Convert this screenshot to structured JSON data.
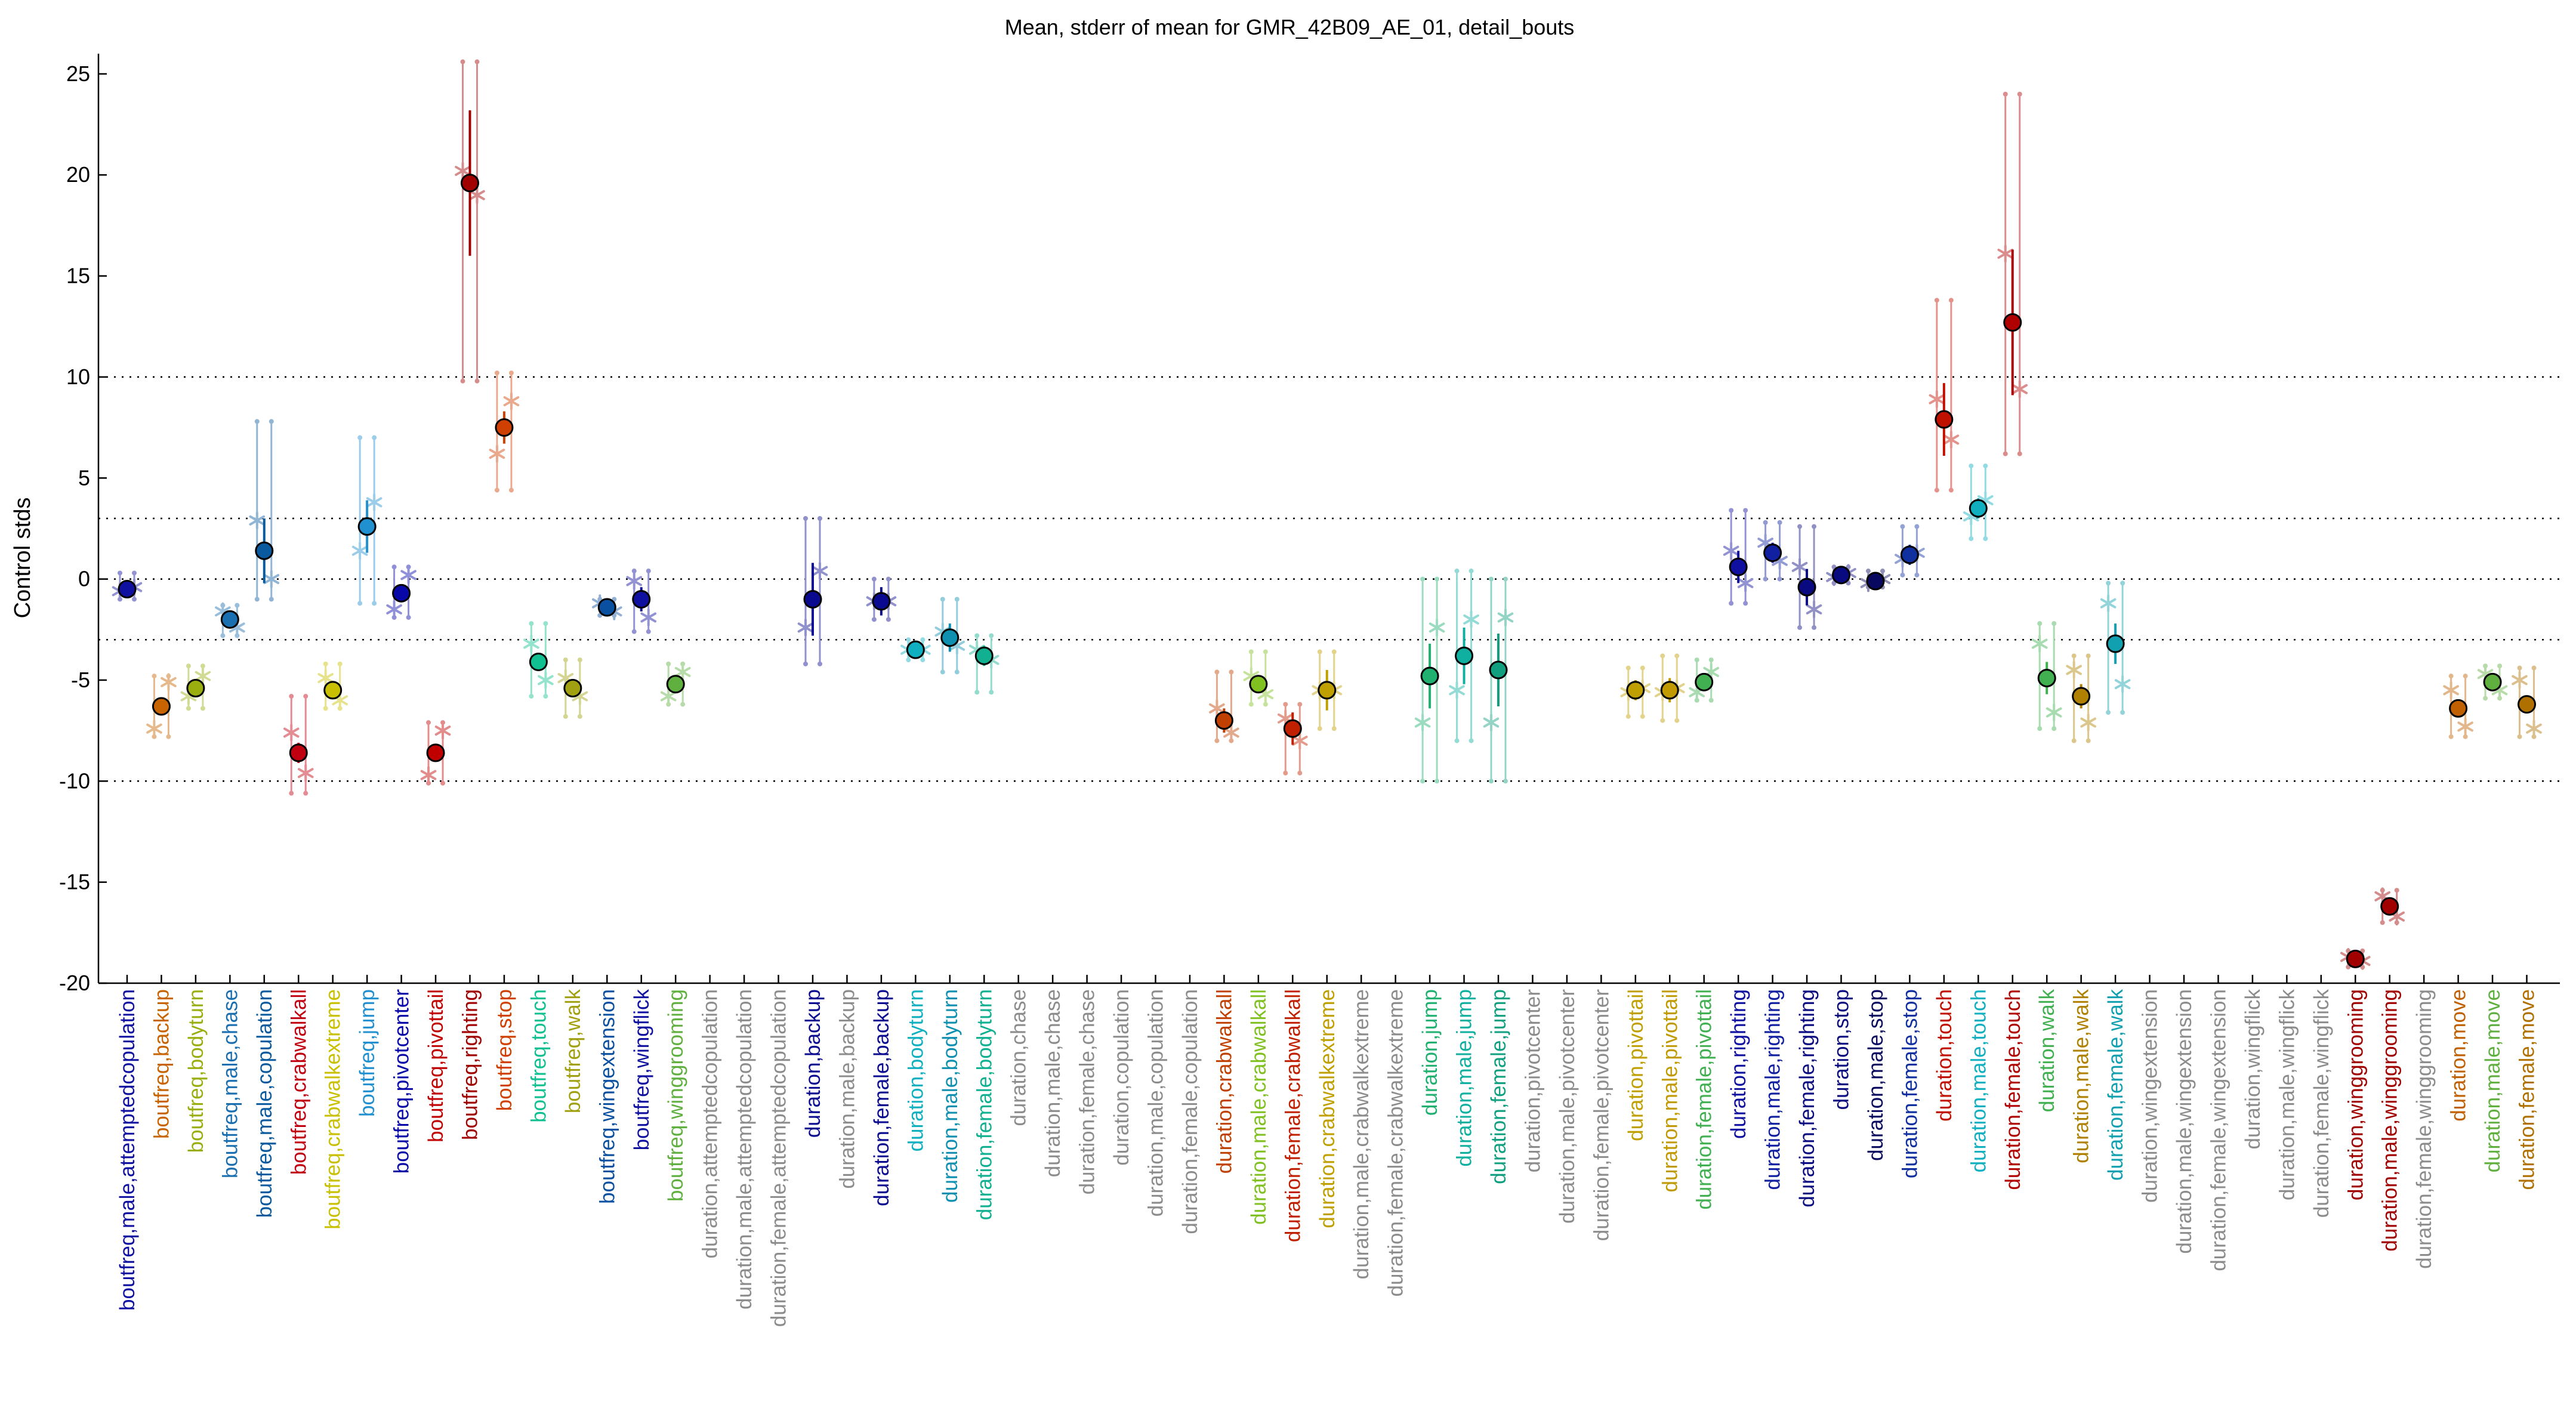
{
  "chart_data": {
    "type": "scatter",
    "title": "Mean, stderr of mean for GMR_42B09_AE_01, detail_bouts",
    "xlabel": "",
    "ylabel": "Control stds",
    "ylim": [
      -20,
      26
    ],
    "yticks": [
      -20,
      -15,
      -10,
      -5,
      0,
      5,
      10,
      15,
      20,
      25
    ],
    "reference_lines": [
      -10,
      -3,
      0,
      3,
      10
    ],
    "grid": false,
    "legend": "none",
    "gray_color": "#8c8c8c",
    "categories": [
      {
        "label": "boutfreq,male,attemptedcopulation",
        "color": "#1010a0",
        "mean": -0.5,
        "se": 0.25,
        "per": [
          -0.6,
          -0.4
        ],
        "range": [
          -1.0,
          0.3
        ]
      },
      {
        "label": "boutfreq,backup",
        "color": "#c86400",
        "mean": -6.3,
        "se": 0.2,
        "per": [
          -7.4,
          -5.1
        ],
        "range": [
          -7.8,
          -4.8
        ]
      },
      {
        "label": "boutfreq,bodyturn",
        "color": "#9aae10",
        "mean": -5.4,
        "se": 0.3,
        "per": [
          -5.8,
          -4.8
        ],
        "range": [
          -6.4,
          -4.3
        ]
      },
      {
        "label": "boutfreq,male,chase",
        "color": "#1a6fb0",
        "mean": -2.0,
        "se": 0.2,
        "per": [
          -1.6,
          -2.4
        ],
        "range": [
          -2.8,
          -1.3
        ]
      },
      {
        "label": "boutfreq,male,copulation",
        "color": "#0a5aa0",
        "mean": 1.4,
        "se": 1.6,
        "per": [
          2.9,
          0.0
        ],
        "range": [
          -1.0,
          7.8
        ]
      },
      {
        "label": "boutfreq,crabwalkall",
        "color": "#c00010",
        "mean": -8.6,
        "se": 0.5,
        "per": [
          -7.6,
          -9.6
        ],
        "range": [
          -10.6,
          -5.8
        ]
      },
      {
        "label": "boutfreq,crabwalkextreme",
        "color": "#c8c000",
        "mean": -5.5,
        "se": 0.3,
        "per": [
          -4.9,
          -6.0
        ],
        "range": [
          -6.4,
          -4.2
        ]
      },
      {
        "label": "boutfreq,jump",
        "color": "#2090d0",
        "mean": 2.6,
        "se": 1.3,
        "per": [
          1.4,
          3.8
        ],
        "range": [
          -1.2,
          7.0
        ]
      },
      {
        "label": "boutfreq,pivotcenter",
        "color": "#0808a8",
        "mean": -0.7,
        "se": 0.3,
        "per": [
          -1.5,
          0.2
        ],
        "range": [
          -1.9,
          0.6
        ]
      },
      {
        "label": "boutfreq,pivottail",
        "color": "#c00000",
        "mean": -8.6,
        "se": 0.4,
        "per": [
          -9.7,
          -7.5
        ],
        "range": [
          -10.1,
          -7.1
        ]
      },
      {
        "label": "boutfreq,righting",
        "color": "#a00000",
        "mean": 19.6,
        "se": 3.6,
        "per": [
          20.2,
          19.0
        ],
        "range": [
          9.8,
          25.6
        ]
      },
      {
        "label": "boutfreq,stop",
        "color": "#d04000",
        "mean": 7.5,
        "se": 0.8,
        "per": [
          6.2,
          8.8
        ],
        "range": [
          4.4,
          10.2
        ]
      },
      {
        "label": "boutfreq,touch",
        "color": "#10c090",
        "mean": -4.1,
        "se": 0.4,
        "per": [
          -3.2,
          -5.0
        ],
        "range": [
          -5.8,
          -2.2
        ]
      },
      {
        "label": "boutfreq,walk",
        "color": "#a0a010",
        "mean": -5.4,
        "se": 0.4,
        "per": [
          -4.9,
          -5.8
        ],
        "range": [
          -6.8,
          -4.0
        ]
      },
      {
        "label": "boutfreq,wingextension",
        "color": "#0a50a0",
        "mean": -1.4,
        "se": 0.2,
        "per": [
          -1.2,
          -1.6
        ],
        "range": [
          -1.8,
          -1.0
        ]
      },
      {
        "label": "boutfreq,wingflick",
        "color": "#1010a0",
        "mean": -1.0,
        "se": 0.6,
        "per": [
          -0.1,
          -1.9
        ],
        "range": [
          -2.6,
          0.4
        ]
      },
      {
        "label": "boutfreq,winggrooming",
        "color": "#60b040",
        "mean": -5.2,
        "se": 0.3,
        "per": [
          -5.8,
          -4.6
        ],
        "range": [
          -6.2,
          -4.2
        ]
      },
      {
        "label": "duration,attemptedcopulation",
        "color": null
      },
      {
        "label": "duration,male,attemptedcopulation",
        "color": null
      },
      {
        "label": "duration,female,attemptedcopulation",
        "color": null
      },
      {
        "label": "duration,backup",
        "color": "#0a0a90",
        "mean": -1.0,
        "se": 1.8,
        "per": [
          -2.4,
          0.4
        ],
        "range": [
          -4.2,
          3.0
        ]
      },
      {
        "label": "duration,male,backup",
        "color": null
      },
      {
        "label": "duration,female,backup",
        "color": "#0a0a90",
        "mean": -1.1,
        "se": 0.7,
        "per": [
          -1.1,
          -1.1
        ],
        "range": [
          -2.0,
          0.0
        ]
      },
      {
        "label": "duration,bodyturn",
        "color": "#10b0c0",
        "mean": -3.5,
        "se": 0.3,
        "per": [
          -3.5,
          -3.5
        ],
        "range": [
          -4.0,
          -3.0
        ]
      },
      {
        "label": "duration,male,bodyturn",
        "color": "#1090b0",
        "mean": -2.9,
        "se": 0.7,
        "per": [
          -2.6,
          -3.3
        ],
        "range": [
          -4.6,
          -1.0
        ]
      },
      {
        "label": "duration,female,bodyturn",
        "color": "#10b090",
        "mean": -3.8,
        "se": 0.5,
        "per": [
          -3.5,
          -4.0
        ],
        "range": [
          -5.6,
          -2.8
        ]
      },
      {
        "label": "duration,chase",
        "color": null
      },
      {
        "label": "duration,male,chase",
        "color": null
      },
      {
        "label": "duration,female,chase",
        "color": null
      },
      {
        "label": "duration,copulation",
        "color": null
      },
      {
        "label": "duration,male,copulation",
        "color": null
      },
      {
        "label": "duration,female,copulation",
        "color": null
      },
      {
        "label": "duration,crabwalkall",
        "color": "#c04000",
        "mean": -7.0,
        "se": 0.6,
        "per": [
          -6.4,
          -7.6
        ],
        "range": [
          -8.0,
          -4.6
        ]
      },
      {
        "label": "duration,male,crabwalkall",
        "color": "#80c020",
        "mean": -5.2,
        "se": 0.4,
        "per": [
          -4.8,
          -5.7
        ],
        "range": [
          -6.2,
          -3.6
        ]
      },
      {
        "label": "duration,female,crabwalkall",
        "color": "#c02000",
        "mean": -7.4,
        "se": 0.8,
        "per": [
          -6.9,
          -8.0
        ],
        "range": [
          -9.6,
          -6.2
        ]
      },
      {
        "label": "duration,crabwalkextreme",
        "color": "#c0a000",
        "mean": -5.5,
        "se": 1.0,
        "per": [
          -5.5,
          -5.5
        ],
        "range": [
          -7.4,
          -3.6
        ]
      },
      {
        "label": "duration,male,crabwalkextreme",
        "color": null
      },
      {
        "label": "duration,female,crabwalkextreme",
        "color": null
      },
      {
        "label": "duration,jump",
        "color": "#20b070",
        "mean": -4.8,
        "se": 1.6,
        "per": [
          -7.1,
          -2.4
        ],
        "range": [
          -10.0,
          0.0
        ]
      },
      {
        "label": "duration,male,jump",
        "color": "#10b0a0",
        "mean": -3.8,
        "se": 1.4,
        "per": [
          -5.5,
          -2.0
        ],
        "range": [
          -8.0,
          0.4
        ]
      },
      {
        "label": "duration,female,jump",
        "color": "#10a080",
        "mean": -4.5,
        "se": 1.8,
        "per": [
          -7.1,
          -1.9
        ],
        "range": [
          -10.0,
          0.0
        ]
      },
      {
        "label": "duration,pivotcenter",
        "color": null
      },
      {
        "label": "duration,male,pivotcenter",
        "color": null
      },
      {
        "label": "duration,female,pivotcenter",
        "color": null
      },
      {
        "label": "duration,pivottail",
        "color": "#c0a000",
        "mean": -5.5,
        "se": 0.5,
        "per": [
          -5.6,
          -5.4
        ],
        "range": [
          -6.8,
          -4.4
        ]
      },
      {
        "label": "duration,male,pivottail",
        "color": "#c09a00",
        "mean": -5.5,
        "se": 0.6,
        "per": [
          -5.6,
          -5.4
        ],
        "range": [
          -7.0,
          -3.8
        ]
      },
      {
        "label": "duration,female,pivottail",
        "color": "#40b050",
        "mean": -5.1,
        "se": 0.4,
        "per": [
          -5.6,
          -4.6
        ],
        "range": [
          -6.0,
          -4.0
        ]
      },
      {
        "label": "duration,righting",
        "color": "#1010a0",
        "mean": 0.6,
        "se": 0.8,
        "per": [
          1.4,
          -0.2
        ],
        "range": [
          -1.2,
          3.4
        ]
      },
      {
        "label": "duration,male,righting",
        "color": "#1020a0",
        "mean": 1.3,
        "se": 0.5,
        "per": [
          1.8,
          0.9
        ],
        "range": [
          0.0,
          2.8
        ]
      },
      {
        "label": "duration,female,righting",
        "color": "#0a0a80",
        "mean": -0.4,
        "se": 0.9,
        "per": [
          0.6,
          -1.5
        ],
        "range": [
          -2.4,
          2.6
        ]
      },
      {
        "label": "duration,stop",
        "color": "#0a0a80",
        "mean": 0.2,
        "se": 0.2,
        "per": [
          0.1,
          0.3
        ],
        "range": [
          -0.2,
          0.6
        ]
      },
      {
        "label": "duration,male,stop",
        "color": "#080860",
        "mean": -0.1,
        "se": 0.2,
        "per": [
          -0.2,
          0.0
        ],
        "range": [
          -0.4,
          0.4
        ]
      },
      {
        "label": "duration,female,stop",
        "color": "#1030a0",
        "mean": 1.2,
        "se": 0.5,
        "per": [
          1.0,
          1.3
        ],
        "range": [
          0.2,
          2.6
        ]
      },
      {
        "label": "duration,touch",
        "color": "#c01000",
        "mean": 7.9,
        "se": 1.8,
        "per": [
          8.9,
          6.9
        ],
        "range": [
          4.4,
          13.8
        ]
      },
      {
        "label": "duration,male,touch",
        "color": "#10b0c0",
        "mean": 3.5,
        "se": 0.5,
        "per": [
          3.1,
          3.9
        ],
        "range": [
          2.0,
          5.6
        ]
      },
      {
        "label": "duration,female,touch",
        "color": "#b00000",
        "mean": 12.7,
        "se": 3.6,
        "per": [
          16.1,
          9.4
        ],
        "range": [
          6.2,
          24.0
        ]
      },
      {
        "label": "duration,walk",
        "color": "#40b050",
        "mean": -4.9,
        "se": 0.8,
        "per": [
          -3.2,
          -6.6
        ],
        "range": [
          -7.4,
          -2.2
        ]
      },
      {
        "label": "duration,male,walk",
        "color": "#b08000",
        "mean": -5.8,
        "se": 0.6,
        "per": [
          -4.5,
          -7.1
        ],
        "range": [
          -8.0,
          -3.8
        ]
      },
      {
        "label": "duration,female,walk",
        "color": "#10a0b0",
        "mean": -3.2,
        "se": 1.0,
        "per": [
          -1.2,
          -5.2
        ],
        "range": [
          -6.6,
          -0.2
        ]
      },
      {
        "label": "duration,wingextension",
        "color": null
      },
      {
        "label": "duration,male,wingextension",
        "color": null
      },
      {
        "label": "duration,female,wingextension",
        "color": null
      },
      {
        "label": "duration,wingflick",
        "color": null
      },
      {
        "label": "duration,male,wingflick",
        "color": null
      },
      {
        "label": "duration,female,wingflick",
        "color": null
      },
      {
        "label": "duration,winggrooming",
        "color": "#a00000",
        "mean": -18.8,
        "se": 0.2,
        "per": [
          -18.7,
          -18.9
        ],
        "range": [
          -19.2,
          -18.4
        ]
      },
      {
        "label": "duration,male,winggrooming",
        "color": "#a00000",
        "mean": -16.2,
        "se": 0.3,
        "per": [
          -15.7,
          -16.7
        ],
        "range": [
          -17.0,
          -15.4
        ]
      },
      {
        "label": "duration,female,winggrooming",
        "color": null
      },
      {
        "label": "duration,move",
        "color": "#c06000",
        "mean": -6.4,
        "se": 0.3,
        "per": [
          -5.5,
          -7.3
        ],
        "range": [
          -7.8,
          -4.8
        ]
      },
      {
        "label": "duration,male,move",
        "color": "#60b040",
        "mean": -5.1,
        "se": 0.3,
        "per": [
          -4.7,
          -5.5
        ],
        "range": [
          -5.9,
          -4.3
        ]
      },
      {
        "label": "duration,female,move",
        "color": "#b07000",
        "mean": -6.2,
        "se": 0.4,
        "per": [
          -5.0,
          -7.4
        ],
        "range": [
          -7.8,
          -4.4
        ]
      }
    ]
  }
}
